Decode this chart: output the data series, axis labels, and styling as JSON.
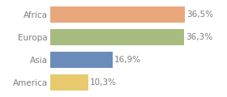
{
  "categories": [
    "Africa",
    "Europa",
    "Asia",
    "America"
  ],
  "values": [
    36.5,
    36.3,
    16.9,
    10.3
  ],
  "labels": [
    "36,5%",
    "36,3%",
    "16,9%",
    "10,3%"
  ],
  "bar_colors": [
    "#e8a87c",
    "#a8bb7e",
    "#6b8cba",
    "#e8c96e"
  ],
  "xlim": [
    0,
    46
  ],
  "background_color": "#ffffff",
  "text_color": "#7f7f7f",
  "fontsize": 7.5,
  "bar_height": 0.72
}
